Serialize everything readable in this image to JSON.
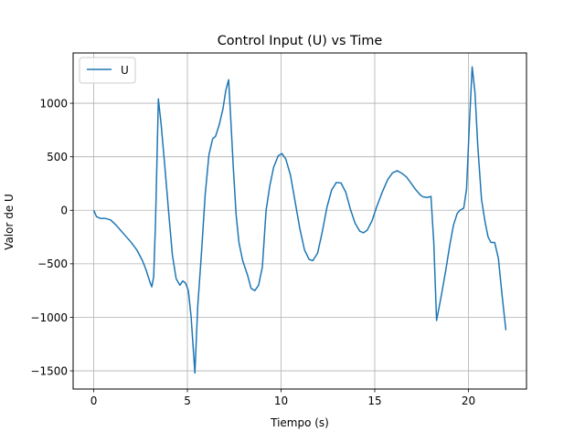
{
  "chart_data": {
    "type": "line",
    "title": "Control Input (U) vs Time",
    "xlabel": "Tiempo (s)",
    "ylabel": "Valor de U",
    "xlim": [
      -1.1,
      23.1
    ],
    "ylim": [
      -1670,
      1470
    ],
    "xticks": [
      0,
      5,
      10,
      15,
      20
    ],
    "yticks": [
      -1500,
      -1000,
      -500,
      0,
      500,
      1000
    ],
    "grid": true,
    "legend": {
      "placement": "top-left",
      "entries": [
        "U"
      ]
    },
    "series": [
      {
        "name": "U",
        "color": "#1f77b4",
        "points": [
          [
            0.0,
            0
          ],
          [
            0.15,
            -60
          ],
          [
            0.35,
            -75
          ],
          [
            0.6,
            -75
          ],
          [
            0.9,
            -90
          ],
          [
            1.2,
            -140
          ],
          [
            1.6,
            -220
          ],
          [
            2.0,
            -300
          ],
          [
            2.3,
            -370
          ],
          [
            2.6,
            -470
          ],
          [
            2.8,
            -560
          ],
          [
            3.0,
            -670
          ],
          [
            3.1,
            -715
          ],
          [
            3.2,
            -620
          ],
          [
            3.3,
            -100
          ],
          [
            3.45,
            1040
          ],
          [
            3.6,
            800
          ],
          [
            3.8,
            400
          ],
          [
            4.0,
            -20
          ],
          [
            4.2,
            -420
          ],
          [
            4.4,
            -640
          ],
          [
            4.6,
            -700
          ],
          [
            4.75,
            -660
          ],
          [
            4.9,
            -680
          ],
          [
            5.05,
            -750
          ],
          [
            5.2,
            -1000
          ],
          [
            5.4,
            -1520
          ],
          [
            5.55,
            -900
          ],
          [
            5.75,
            -400
          ],
          [
            5.95,
            150
          ],
          [
            6.15,
            520
          ],
          [
            6.35,
            670
          ],
          [
            6.5,
            690
          ],
          [
            6.7,
            800
          ],
          [
            6.9,
            950
          ],
          [
            7.05,
            1120
          ],
          [
            7.2,
            1220
          ],
          [
            7.3,
            900
          ],
          [
            7.45,
            400
          ],
          [
            7.6,
            -40
          ],
          [
            7.75,
            -300
          ],
          [
            7.95,
            -470
          ],
          [
            8.2,
            -600
          ],
          [
            8.4,
            -730
          ],
          [
            8.6,
            -750
          ],
          [
            8.8,
            -700
          ],
          [
            9.0,
            -530
          ],
          [
            9.2,
            0
          ],
          [
            9.4,
            230
          ],
          [
            9.6,
            400
          ],
          [
            9.85,
            510
          ],
          [
            10.05,
            530
          ],
          [
            10.25,
            480
          ],
          [
            10.5,
            330
          ],
          [
            10.75,
            80
          ],
          [
            11.0,
            -170
          ],
          [
            11.25,
            -370
          ],
          [
            11.5,
            -460
          ],
          [
            11.7,
            -470
          ],
          [
            11.95,
            -400
          ],
          [
            12.2,
            -200
          ],
          [
            12.45,
            30
          ],
          [
            12.7,
            190
          ],
          [
            12.95,
            260
          ],
          [
            13.2,
            255
          ],
          [
            13.45,
            170
          ],
          [
            13.7,
            10
          ],
          [
            13.95,
            -120
          ],
          [
            14.2,
            -195
          ],
          [
            14.4,
            -210
          ],
          [
            14.6,
            -185
          ],
          [
            14.85,
            -100
          ],
          [
            15.1,
            30
          ],
          [
            15.4,
            170
          ],
          [
            15.7,
            290
          ],
          [
            15.95,
            350
          ],
          [
            16.2,
            370
          ],
          [
            16.45,
            345
          ],
          [
            16.7,
            310
          ],
          [
            16.95,
            250
          ],
          [
            17.2,
            190
          ],
          [
            17.45,
            140
          ],
          [
            17.6,
            125
          ],
          [
            17.8,
            120
          ],
          [
            18.0,
            130
          ],
          [
            18.15,
            -300
          ],
          [
            18.3,
            -1030
          ],
          [
            18.55,
            -800
          ],
          [
            18.8,
            -550
          ],
          [
            19.0,
            -330
          ],
          [
            19.2,
            -140
          ],
          [
            19.4,
            -30
          ],
          [
            19.55,
            0
          ],
          [
            19.75,
            20
          ],
          [
            19.9,
            200
          ],
          [
            20.05,
            800
          ],
          [
            20.2,
            1340
          ],
          [
            20.35,
            1100
          ],
          [
            20.5,
            600
          ],
          [
            20.7,
            100
          ],
          [
            20.9,
            -120
          ],
          [
            21.05,
            -250
          ],
          [
            21.2,
            -300
          ],
          [
            21.4,
            -300
          ],
          [
            21.6,
            -450
          ],
          [
            21.8,
            -800
          ],
          [
            22.0,
            -1120
          ]
        ]
      }
    ]
  }
}
